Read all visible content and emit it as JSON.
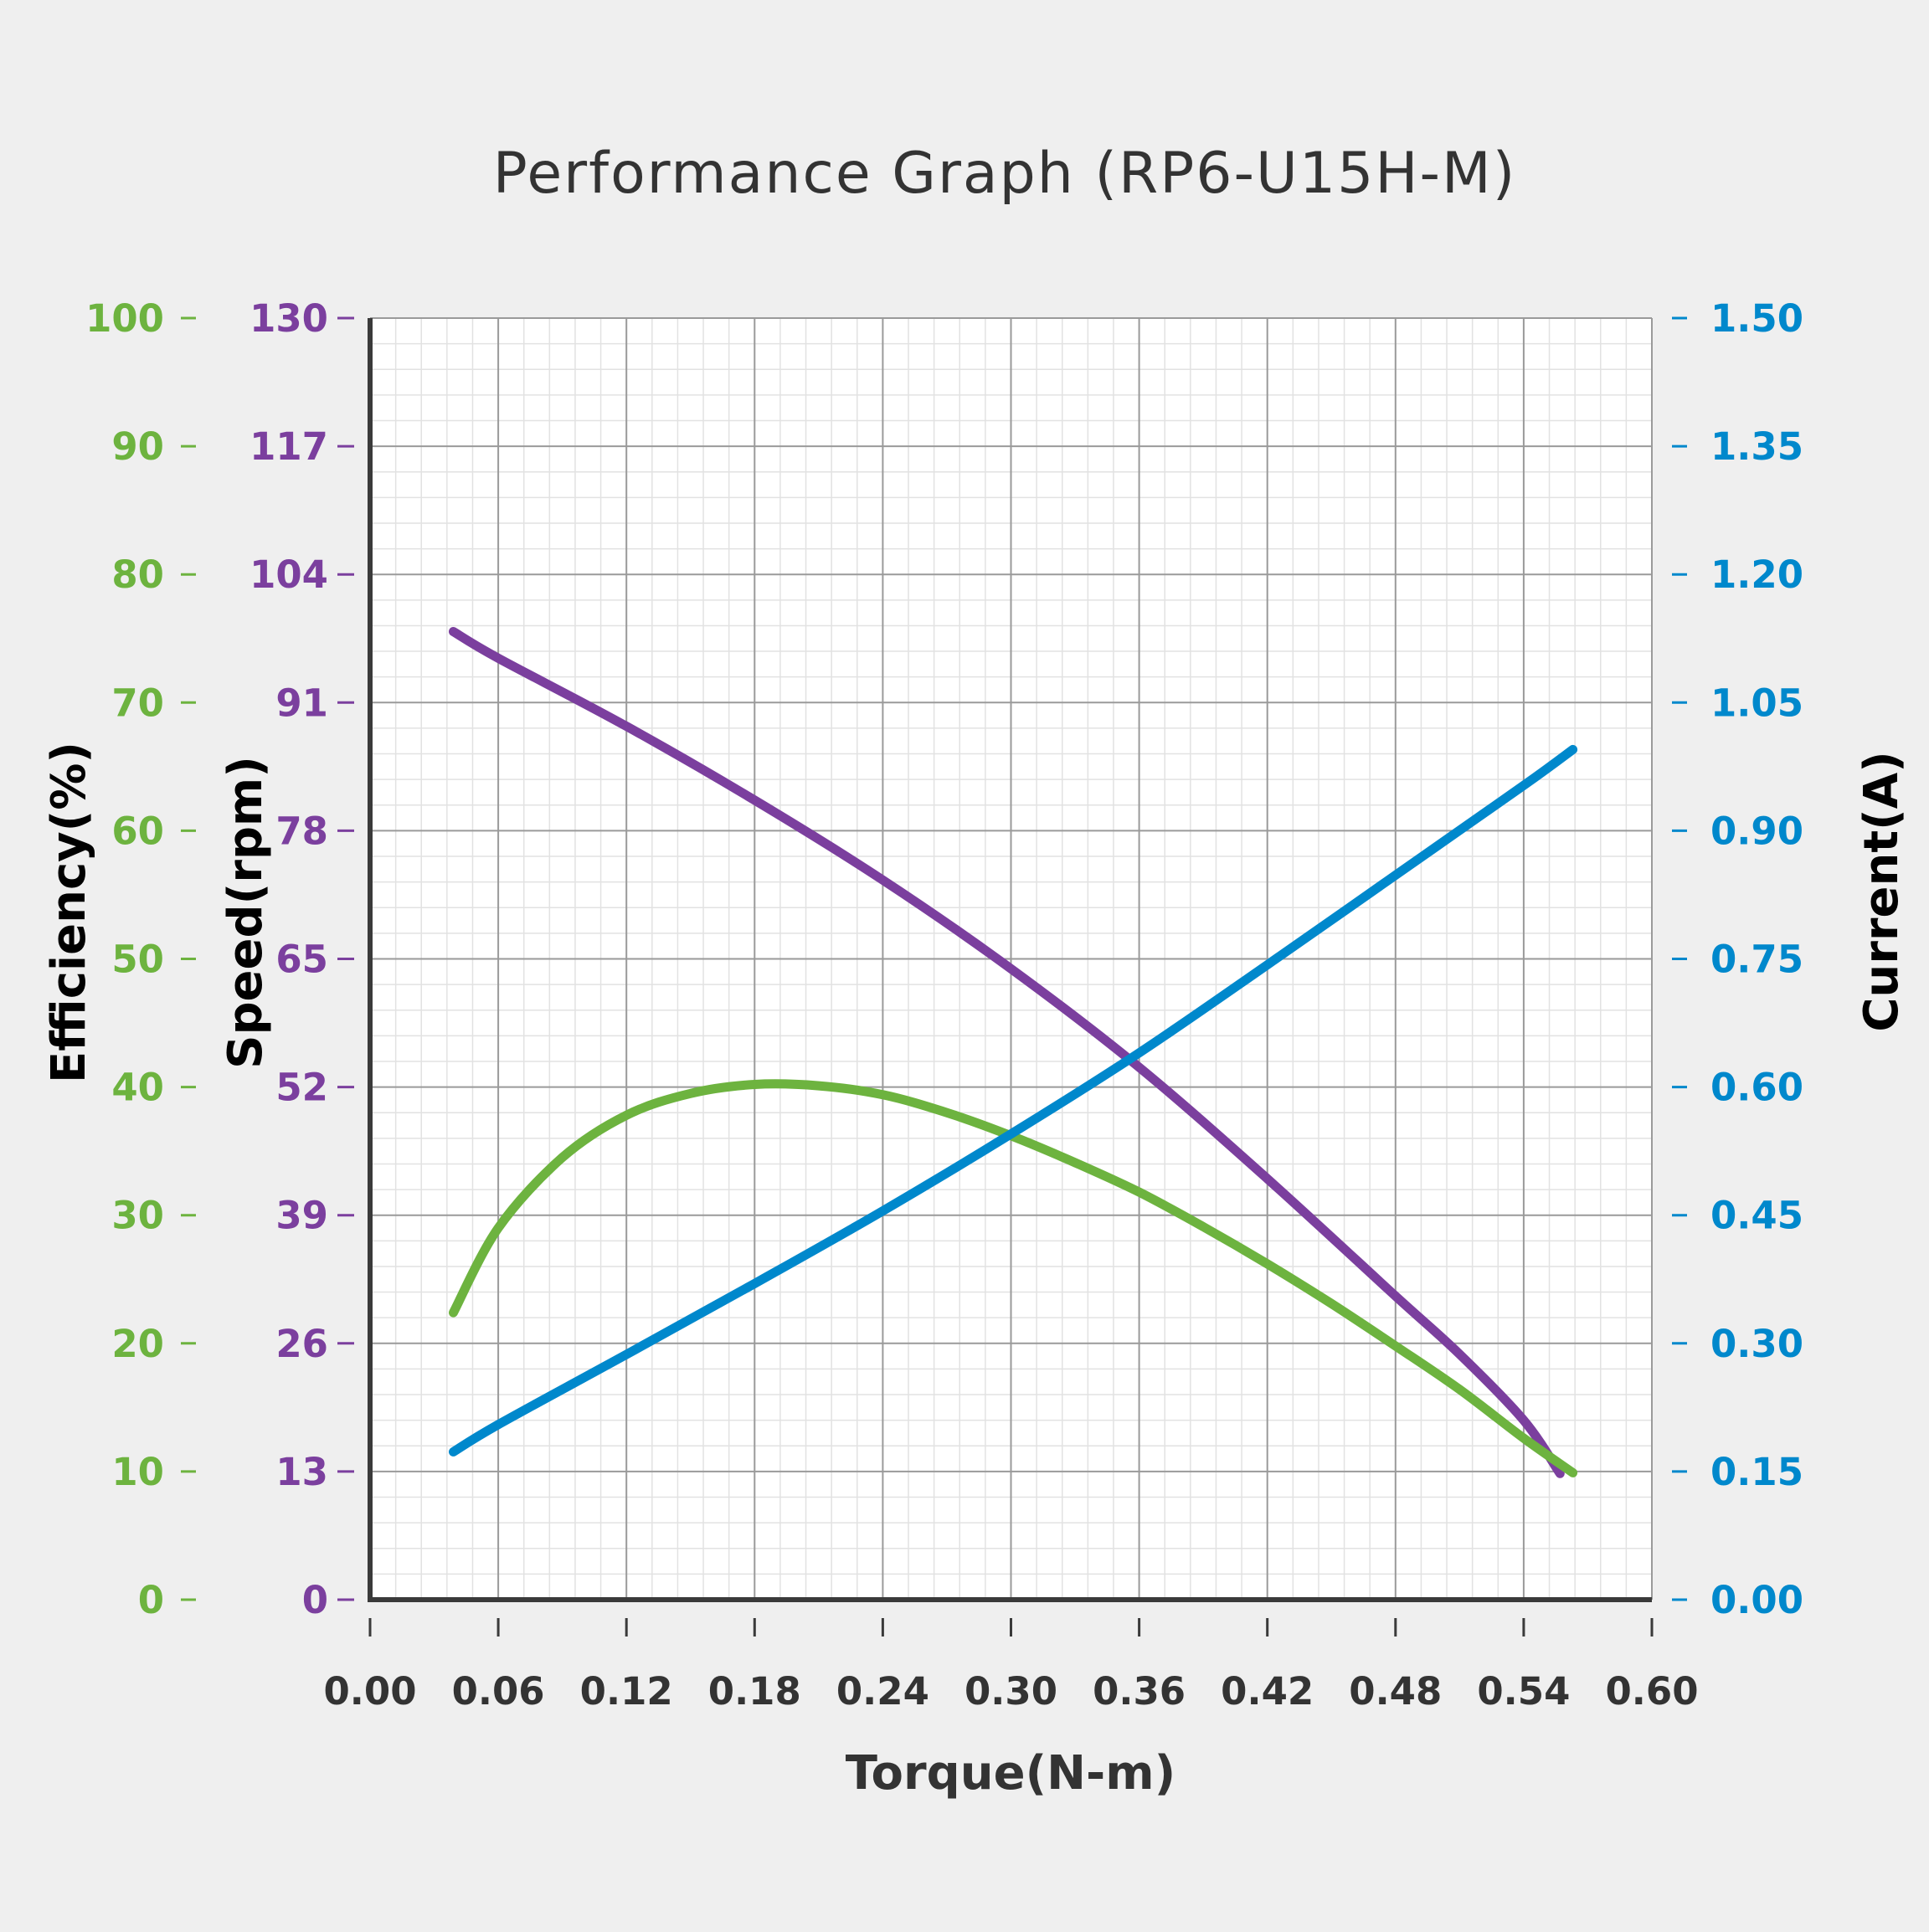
{
  "chart_data": {
    "type": "line",
    "title": "Performance Graph  (RP6-U15H-M)",
    "xlabel": "Torque(N-m)",
    "xlim": [
      0,
      0.6
    ],
    "x_ticks": [
      "0.00",
      "0.06",
      "0.12",
      "0.18",
      "0.24",
      "0.30",
      "0.36",
      "0.42",
      "0.48",
      "0.54",
      "0.60"
    ],
    "grid": true,
    "axes": {
      "efficiency": {
        "label": "Efficiency(%)",
        "range": [
          0,
          100
        ],
        "ticks": [
          "0",
          "10",
          "20",
          "30",
          "40",
          "50",
          "60",
          "70",
          "80",
          "90",
          "100"
        ],
        "color": "#6db33f"
      },
      "speed": {
        "label": "Speed(rpm)",
        "range": [
          0,
          130
        ],
        "ticks": [
          "0",
          "13",
          "26",
          "39",
          "52",
          "65",
          "78",
          "91",
          "104",
          "117",
          "130"
        ],
        "color": "#7b3f9e"
      },
      "current": {
        "label": "Current(A)",
        "range": [
          0,
          1.5
        ],
        "ticks": [
          "0.00",
          "0.15",
          "0.30",
          "0.45",
          "0.60",
          "0.75",
          "0.90",
          "1.05",
          "1.20",
          "1.35",
          "1.50"
        ],
        "color": "#0088cc"
      }
    },
    "series": [
      {
        "axis": "speed",
        "color": "#7b3f9e",
        "x": [
          0.039,
          0.06,
          0.12,
          0.18,
          0.24,
          0.3,
          0.36,
          0.42,
          0.48,
          0.51,
          0.54,
          0.557
        ],
        "y": [
          98.2,
          95.5,
          88.6,
          81.1,
          73.0,
          64.0,
          54.0,
          42.7,
          30.8,
          24.9,
          18.2,
          12.8
        ]
      },
      {
        "axis": "efficiency",
        "color": "#6db33f",
        "x": [
          0.039,
          0.06,
          0.09,
          0.12,
          0.15,
          0.18,
          0.21,
          0.24,
          0.27,
          0.3,
          0.33,
          0.36,
          0.39,
          0.42,
          0.45,
          0.48,
          0.51,
          0.54,
          0.563
        ],
        "y": [
          22.4,
          29.0,
          34.5,
          37.8,
          39.5,
          40.2,
          40.1,
          39.4,
          38.0,
          36.2,
          34.1,
          31.8,
          29.1,
          26.2,
          23.1,
          19.8,
          16.4,
          12.6,
          9.9
        ]
      },
      {
        "axis": "current",
        "color": "#0088cc",
        "x": [
          0.039,
          0.06,
          0.12,
          0.18,
          0.24,
          0.3,
          0.36,
          0.42,
          0.48,
          0.54,
          0.563
        ],
        "y": [
          0.173,
          0.205,
          0.287,
          0.37,
          0.455,
          0.545,
          0.64,
          0.743,
          0.848,
          0.953,
          0.995
        ]
      }
    ]
  }
}
